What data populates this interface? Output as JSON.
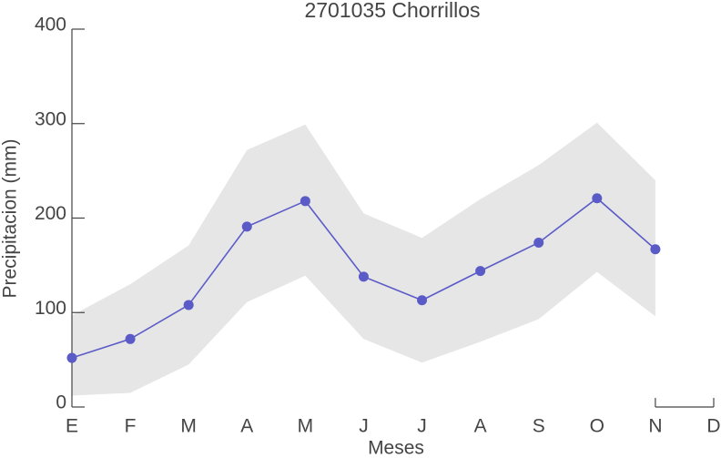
{
  "chart_data": {
    "type": "line",
    "title": "2701035 Chorrillos",
    "x_label": "Meses",
    "y_label": "Precipitacion (mm)",
    "categories": [
      "E",
      "F",
      "M",
      "A",
      "M",
      "J",
      "J",
      "A",
      "S",
      "O",
      "N",
      "D"
    ],
    "series": [
      {
        "color": "#5b5bc8",
        "values": [
          52,
          72,
          108,
          191,
          218,
          138,
          113,
          144,
          174,
          221,
          167,
          null
        ],
        "band_color": "#e6e6e6",
        "lower": [
          12,
          15,
          45,
          111,
          139,
          72,
          47,
          69,
          93,
          143,
          96,
          null
        ],
        "upper": [
          97,
          130,
          171,
          272,
          299,
          205,
          179,
          220,
          256,
          301,
          240,
          null
        ]
      }
    ],
    "ylim": [
      0,
      400
    ],
    "yticks": [
      0,
      100,
      200,
      300,
      400
    ],
    "grid": false
  }
}
